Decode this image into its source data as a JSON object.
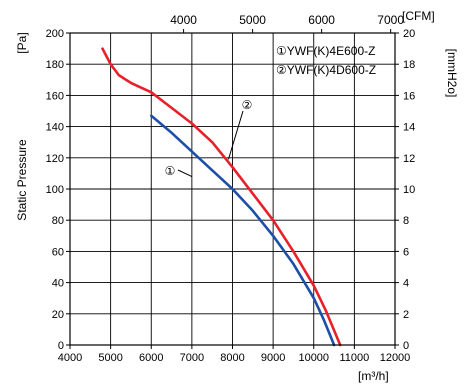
{
  "chart_data": {
    "type": "line",
    "x_unit_bottom": "[m³/h]",
    "x_unit_top": "[CFM]",
    "y_unit_left": "[Pa]",
    "y_unit_right": "[mmH2o]",
    "ylabel": "Static Pressure",
    "xlim": [
      4000,
      12000
    ],
    "ylim": [
      0,
      200
    ],
    "x_ticks": [
      4000,
      5000,
      6000,
      7000,
      8000,
      9000,
      10000,
      11000,
      12000
    ],
    "y_ticks": [
      0,
      20,
      40,
      60,
      80,
      100,
      120,
      140,
      160,
      180,
      200
    ],
    "x_top_ticks": [
      4000,
      5000,
      6000,
      7000
    ],
    "y_right_ticks": [
      0,
      2,
      4,
      6,
      8,
      10,
      12,
      14,
      16,
      18,
      20
    ],
    "grid": true,
    "legend_position": "top-right",
    "legend": [
      "①YWF(K)4E600-Z",
      "②YWF(K)4D600-Z"
    ],
    "series": [
      {
        "marker": "①",
        "color": "#1c4fa8",
        "x": [
          6000,
          6500,
          7000,
          7500,
          8000,
          8500,
          9000,
          9500,
          10000,
          10250,
          10500
        ],
        "y": [
          147,
          136,
          124,
          112,
          100,
          86,
          70,
          52,
          30,
          16,
          0
        ]
      },
      {
        "marker": "②",
        "color": "#e8202a",
        "x": [
          4800,
          5000,
          5200,
          5500,
          6000,
          6500,
          7000,
          7500,
          8000,
          8500,
          9000,
          9500,
          10000,
          10300,
          10650
        ],
        "y": [
          190,
          180,
          173,
          168,
          162,
          152,
          142,
          130,
          114,
          97,
          80,
          60,
          38,
          22,
          0
        ]
      }
    ]
  }
}
